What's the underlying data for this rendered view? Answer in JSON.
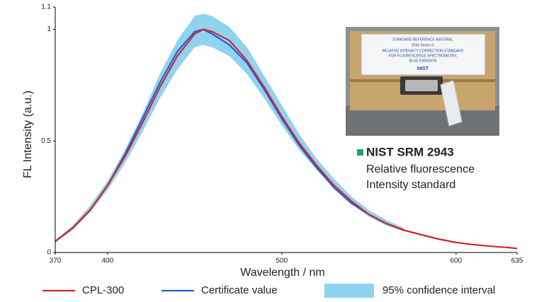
{
  "chart_data": {
    "type": "line",
    "x_label": "Wavelength / nm",
    "y_label": "FL Intensity (a.u.)",
    "xlim": [
      370,
      635
    ],
    "xticks": [
      370,
      400,
      500,
      600,
      635
    ],
    "ylim": [
      0,
      1.1
    ],
    "yticks": [
      0,
      0.5,
      1,
      1.1
    ],
    "x": [
      370,
      380,
      390,
      400,
      410,
      420,
      430,
      440,
      450,
      455,
      460,
      470,
      480,
      490,
      500,
      510,
      520,
      530,
      540,
      550,
      560,
      570,
      580,
      590,
      600,
      610,
      620,
      630,
      635
    ],
    "band": {
      "name": "95% confidence interval",
      "color": "#8fd3ee",
      "x": [
        370,
        380,
        390,
        400,
        410,
        420,
        430,
        440,
        450,
        455,
        460,
        470,
        480,
        490,
        500,
        510,
        520,
        530,
        540,
        550,
        560,
        570
      ],
      "lower": [
        0.045,
        0.1,
        0.18,
        0.28,
        0.4,
        0.54,
        0.69,
        0.82,
        0.92,
        0.93,
        0.92,
        0.88,
        0.8,
        0.69,
        0.57,
        0.46,
        0.37,
        0.29,
        0.22,
        0.16,
        0.12,
        0.095
      ],
      "upper": [
        0.055,
        0.12,
        0.21,
        0.32,
        0.46,
        0.62,
        0.8,
        0.95,
        1.06,
        1.07,
        1.06,
        1.01,
        0.92,
        0.79,
        0.66,
        0.53,
        0.42,
        0.33,
        0.25,
        0.19,
        0.145,
        0.11
      ]
    },
    "series": [
      {
        "name": "Certificate value",
        "color": "#1f5fd6",
        "values": [
          0.05,
          0.11,
          0.19,
          0.3,
          0.44,
          0.6,
          0.76,
          0.9,
          0.99,
          1.0,
          0.98,
          0.93,
          0.85,
          0.73,
          0.6,
          0.48,
          0.38,
          0.29,
          0.22,
          0.17,
          0.13,
          0.1,
          0.08,
          0.06,
          0.045,
          null,
          null,
          null,
          null
        ]
      },
      {
        "name": "CPL-300",
        "color": "#d9222a",
        "values": [
          0.05,
          0.11,
          0.19,
          0.3,
          0.43,
          0.58,
          0.74,
          0.88,
          0.98,
          1.0,
          0.99,
          0.95,
          0.86,
          0.74,
          0.61,
          0.49,
          0.39,
          0.3,
          0.23,
          0.17,
          0.13,
          0.1,
          0.08,
          0.06,
          0.045,
          0.035,
          0.028,
          0.022,
          0.018
        ]
      }
    ],
    "annotations": {
      "product": "NIST SRM 2943",
      "line1": "Relative fluorescence",
      "line2": "Intensity standard",
      "photo_header": "STANDARD REFERENCE MATERIAL",
      "photo_series": "2943 Series D",
      "photo_line1": "RELATIVE INTENSITY CORRECTION STANDARD",
      "photo_line2": "FOR FLUORESCENCE SPECTROMETRY,",
      "photo_line3": "BLUE EMISSION",
      "photo_logo": "NIST"
    }
  }
}
